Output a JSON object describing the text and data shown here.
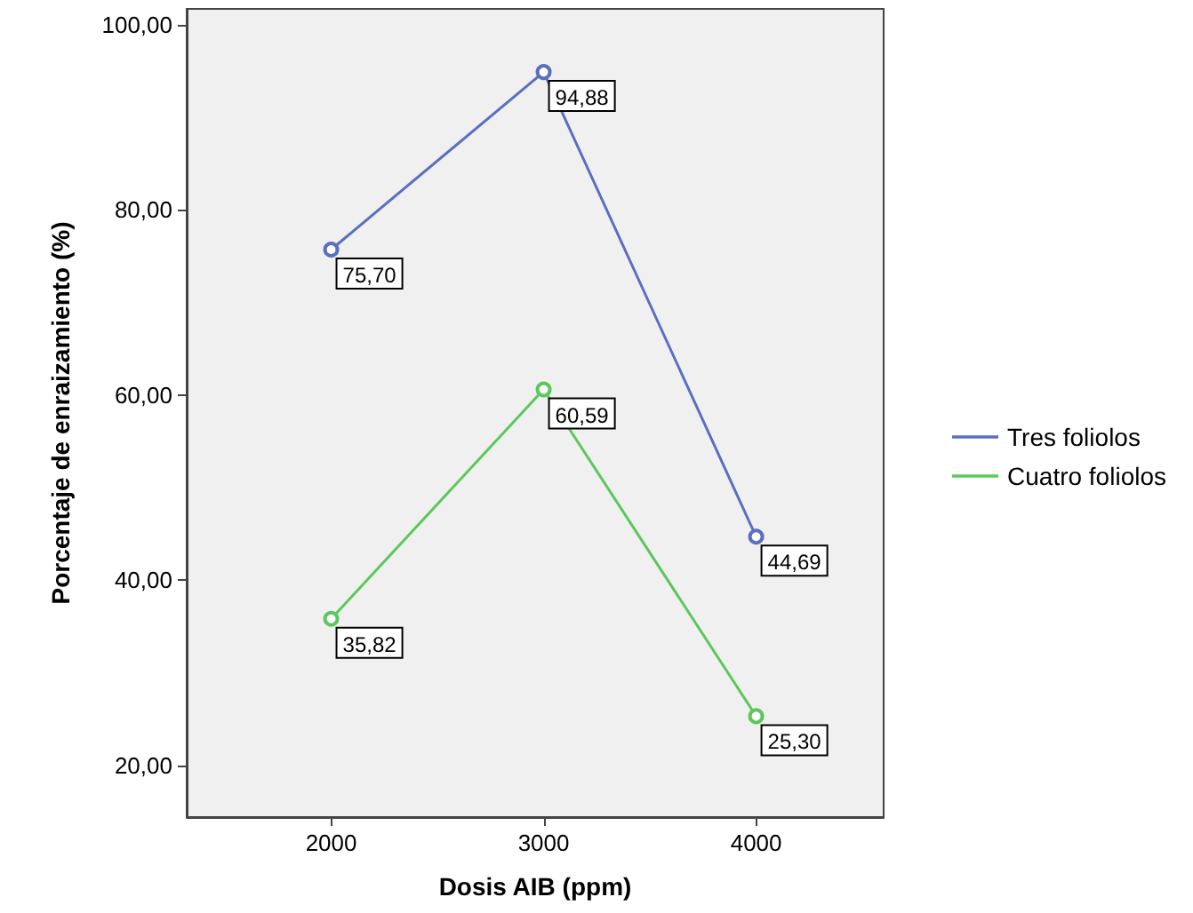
{
  "chart_data": {
    "type": "line",
    "xlabel": "Dosis AIB (ppm)",
    "ylabel": "Porcentaje de enraizamiento (%)",
    "x": [
      2000,
      3000,
      4000
    ],
    "series": [
      {
        "name": "Tres foliolos",
        "color": "#5a6fc0",
        "values": [
          75.7,
          94.88,
          44.69
        ],
        "value_labels": [
          "75,70",
          "94,88",
          "44,69"
        ]
      },
      {
        "name": "Cuatro foliolos",
        "color": "#5cc85c",
        "values": [
          35.82,
          60.59,
          25.3
        ],
        "value_labels": [
          "35,82",
          "60,59",
          "25,30"
        ]
      }
    ],
    "xlim": [
      1320,
      4600
    ],
    "xticks": [
      2000,
      3000,
      4000
    ],
    "ylim": [
      14.4,
      101.7
    ],
    "yticks": [
      {
        "value": 20,
        "label": "20,00"
      },
      {
        "value": 40,
        "label": "40,00"
      },
      {
        "value": 60,
        "label": "60,00"
      },
      {
        "value": 80,
        "label": "80,00"
      },
      {
        "value": 100,
        "label": "100,00"
      }
    ],
    "legend": "right",
    "marker": "circle",
    "grid": false
  }
}
